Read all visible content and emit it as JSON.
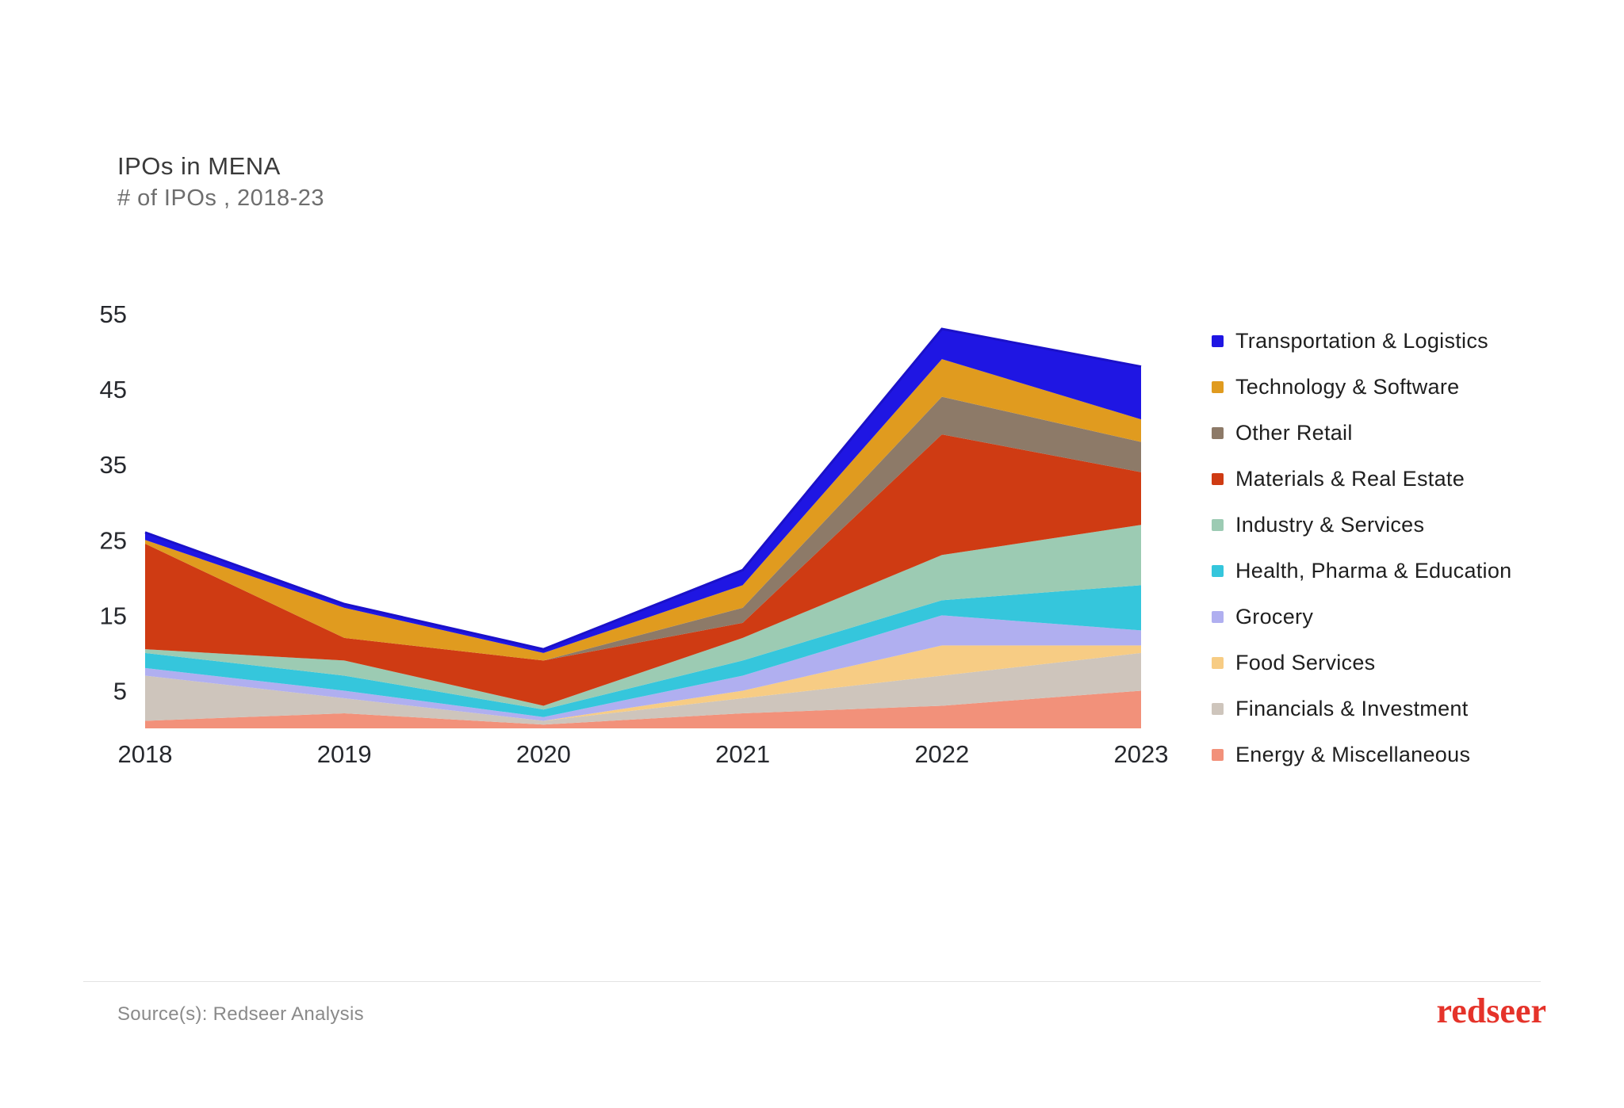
{
  "header": {
    "title": "IPOs in MENA",
    "subtitle": "# of IPOs , 2018-23"
  },
  "footer": {
    "source_text": "Source(s): Redseer Analysis",
    "brand_logo_text": "redseer",
    "brand_color": "#e5332a"
  },
  "axis": {
    "tick_color": "#26282d",
    "label_color": "#26282d"
  },
  "chart_data": {
    "type": "area",
    "stacked": true,
    "title": "IPOs in MENA",
    "subtitle": "# of IPOs , 2018-23",
    "x": [
      "2018",
      "2019",
      "2020",
      "2021",
      "2022",
      "2023"
    ],
    "y_ticks": [
      5,
      15,
      25,
      35,
      45,
      55
    ],
    "ylim": [
      0,
      57
    ],
    "grid": false,
    "legend_position": "right",
    "top_edge_line_color": "#1b11c9",
    "series": [
      {
        "name": "Energy & Miscellaneous",
        "color": "#f2917a",
        "values": [
          1,
          2,
          0.5,
          2,
          3,
          5
        ]
      },
      {
        "name": "Financials & Investment",
        "color": "#cec5bc",
        "values": [
          6,
          2,
          0.5,
          2,
          4,
          5
        ]
      },
      {
        "name": "Food Services",
        "color": "#f7cc84",
        "values": [
          0,
          0,
          0,
          1,
          4,
          1
        ]
      },
      {
        "name": "Grocery",
        "color": "#b0aff0",
        "values": [
          1,
          1,
          0.5,
          2,
          4,
          2
        ]
      },
      {
        "name": "Health, Pharma & Education",
        "color": "#35c6dc",
        "values": [
          2,
          2,
          1,
          2,
          2,
          6
        ]
      },
      {
        "name": "Industry & Services",
        "color": "#9ccbb3",
        "values": [
          0.5,
          2,
          0.5,
          3,
          6,
          8
        ]
      },
      {
        "name": "Materials & Real Estate",
        "color": "#cf3b13",
        "values": [
          14,
          3,
          6,
          2,
          16,
          7
        ]
      },
      {
        "name": "Other Retail",
        "color": "#8d7a68",
        "values": [
          0,
          0,
          0,
          2,
          5,
          4
        ]
      },
      {
        "name": "Technology & Software",
        "color": "#e09b1f",
        "values": [
          0.5,
          4,
          1,
          3,
          5,
          3
        ]
      },
      {
        "name": "Transportation & Logistics",
        "color": "#1f16e3",
        "values": [
          1,
          0.5,
          0.5,
          2,
          4,
          7
        ]
      }
    ],
    "legend_items_top_to_bottom": [
      "Transportation & Logistics",
      "Technology & Software",
      "Other Retail",
      "Materials & Real Estate",
      "Industry & Services",
      "Health, Pharma & Education",
      "Grocery",
      "Food Services",
      "Financials & Investment",
      "Energy & Miscellaneous"
    ]
  }
}
